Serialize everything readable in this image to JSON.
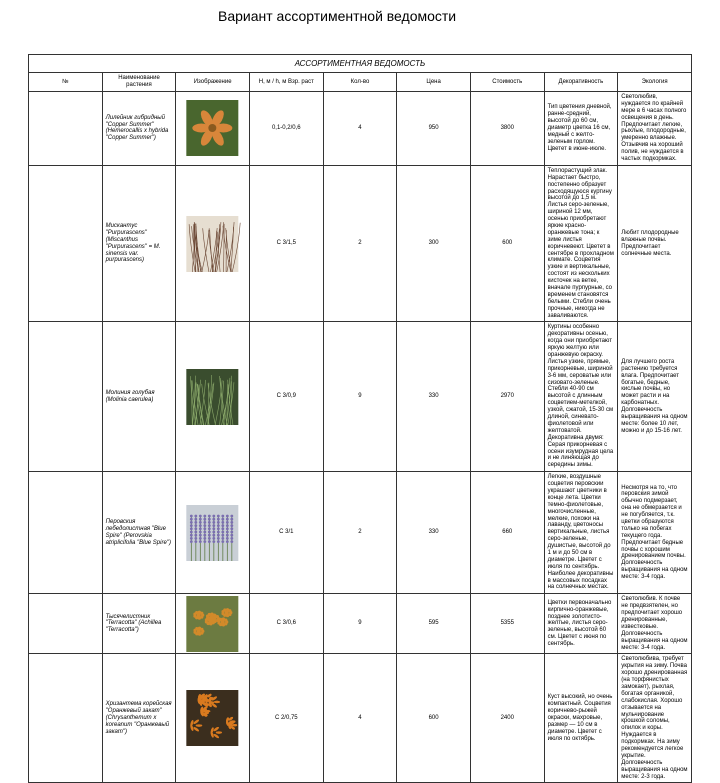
{
  "slide_title": "Вариант ассортиментной ведомости",
  "table_title": "АССОРТИМЕНТНАЯ ВЕДОМОСТЬ",
  "columns": {
    "num": "№",
    "name": "Наименование растения",
    "img": "Изображение",
    "size": "Н, м / h, м Взр. раст",
    "qty": "Кол-во",
    "price": "Цена",
    "cost": "Стоимость",
    "decor": "Декоративность",
    "eco": "Экология"
  },
  "rows": [
    {
      "num": "",
      "name": "Лилейник гибридный \"Copper Summer\" (Hemerocallis x hybrida \"Copper Summer\")",
      "size": "0,1-0,2/0,6",
      "qty": "4",
      "price": "950",
      "cost": "3800",
      "decor": "Тип цветения дневной, ранне-средний, высотой до 60 см, диаметр цветка 16 см, медный с желто-зеленым горлом. Цветет в июне-июле.",
      "eco": "Светолюбив, нуждается по крайней мере в 6 часах полного освещения в день. Предпочитает легкие, рыхлые, плодородные, умеренно влажные. Отзывчив на хороший полив, не нуждается в частых подкормках.",
      "image": {
        "type": "flower",
        "bg": "#49662e",
        "petal": "#d8863a",
        "center": "#8a5a1f"
      }
    },
    {
      "num": "",
      "name": "Мискантус \"Purpurascens\" (Miscanthus \"Purpurascens\" = M. sinensis var. purpurascens)",
      "size": "С 3/1,5",
      "qty": "2",
      "price": "300",
      "cost": "600",
      "decor": "Теплорастущий злак. Нарастает быстро, постепенно образует расходящуюся куртину высотой до 1,5 м. Листья серо-зеленые, шириной 12 мм, осенью приобретают яркие красно-оранжевые тона; к зиме листья коричневеют. Цветет в сентябре в прохладном климате. Соцветия узкие и вертикальные, состоят из нескольких кисточек на ветке, вначале пурпурные, со временем становятся белыми. Стебли очень прочные, никогда не заваливаются.",
      "eco": "Любит плодородные влажные почвы. Предпочитает солнечные места.",
      "image": {
        "type": "grass",
        "bg": "#e6ded1",
        "blade": "#6a4633"
      }
    },
    {
      "num": "",
      "name": "Молиния голубая (Molinia caerulea)",
      "size": "С 3/0,9",
      "qty": "9",
      "price": "330",
      "cost": "2970",
      "decor": "Куртины особенно декоративны осенью, когда они приобретают яркую желтую или оранжевую окраску. Листья узкие, прямые, прикорневые, шириной 3-6 мм, сероватые или сизовато-зеленые. Стебли 40-90 см высотой с длинным соцветием-метелкой, узкой, сжатой, 15-30 см длиной, синевато-фиолетовой или желтоватой. Декоративна двумя: Серая прикорневая с осени изумрудная цела и не линяющая до середины зимы.",
      "eco": "Для лучшего роста растению требуется влага. Предпочитает богатые, бедные, кислые почвы, но может расти и на карбонатных. Долговечность выращивания на одном месте: более 10 лет, можно и до 15-16 лет.",
      "image": {
        "type": "grass",
        "bg": "#3a4d2e",
        "blade": "#8aa86a"
      }
    },
    {
      "num": "",
      "name": "Перовския лебедолистная \"Blue Spire\" (Perovskia atriplicifolia \"Blue Spire\")",
      "size": "С 3/1",
      "qty": "2",
      "price": "330",
      "cost": "660",
      "decor": "Легкие, воздушные соцветия перовскии украшают цветники в конце лета. Цветки темно-фиолетовые, многочисленные, мелкие, похожи на лаванду, цветоносы вертикальные, листья серо-зеленые, душистые, высотой до 1 м и до 50 см в диаметре. Цветет с июля по сентябрь. Наиболее декоративны в массовых посадках на солнечных местах.",
      "eco": "Несмотря на то, что перовския зимой обычно подмерзает, она не обмерзается и не погубляется, т.к. цветки образуются только на побегах текущего года. Предпочитает бедные почвы с хорошим дренированием почвы. Долговечность выращивания на одном месте: 3-4 года.",
      "image": {
        "type": "lavender",
        "bg": "#c9cfd6",
        "stem": "#5f7a46",
        "flower": "#7b6fb0"
      }
    },
    {
      "num": "",
      "name": "Тысячелистник \"Terracotta\" (Achillea \"Terracotta\")",
      "size": "С 3/0,6",
      "qty": "9",
      "price": "595",
      "cost": "5355",
      "decor": "Цветки первоначально кирпично-оранжевые, позднее золотисто-желтые, листья серо-зеленые, высотой 60 см. Цветет с июня по сентябрь.",
      "eco": "Светолюбив. К почве не предвзятелен, но предпочитает хорошо дренированные, известковые. Долговечность выращивания на одном месте: 3-4 года.",
      "image": {
        "type": "yarrow",
        "bg": "#6c7b41",
        "head": "#d28a2a"
      }
    },
    {
      "num": "",
      "name": "Хризантема корейская \"Оранжевый закат\" (Chrysanthemum x koreanum \"Оранжевый закат\")",
      "size": "С 2/0,75",
      "qty": "4",
      "price": "600",
      "cost": "2400",
      "decor": "Куст высокий, но очень компактный. Соцветия коричнево-рыжей окраски, махровые, размер — 10 см в диаметре. Цветет с июля по октябрь.",
      "eco": "Светолюбива, требует укрытия на зиму. Почва хорошо дренированная (на торфянистых замокает), рыхлая, богатая органикой, слабокислая. Хорошо отзывается на мульчирование крошкой соломы, опилок и коры. Нуждается в подкормках. На зиму рекомендуется легкое укрытие. Долговечность выращивания на одном месте: 2-3 года.",
      "image": {
        "type": "mum",
        "bg": "#3b2e1e",
        "petal": "#d97a1f"
      }
    }
  ]
}
